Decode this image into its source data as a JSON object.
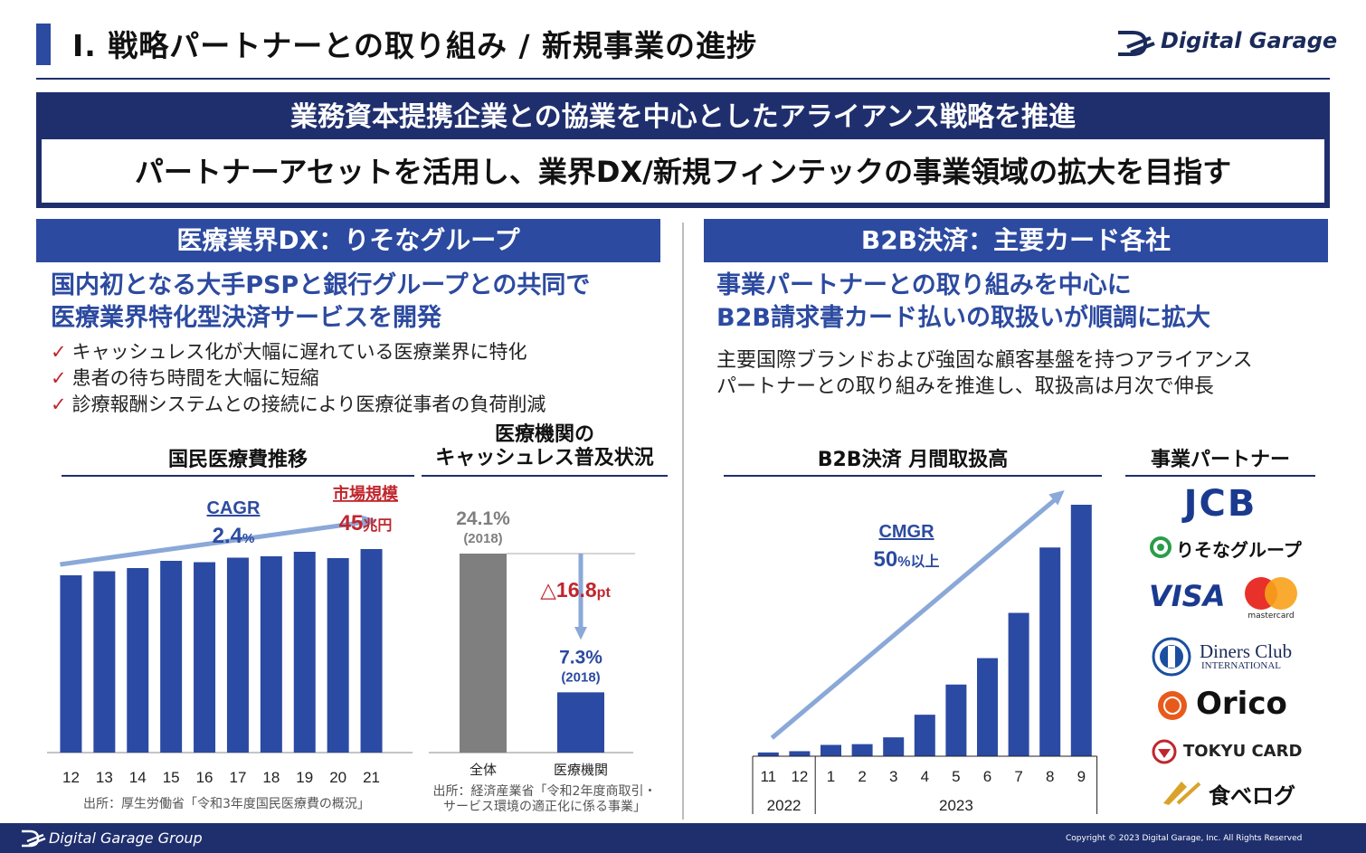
{
  "header": {
    "title": "Ⅰ. 戦略パートナーとの取り組み / 新規事業の進捗",
    "logo_text": "Digital Garage"
  },
  "banner": {
    "top": "業務資本提携企業との協業を中心としたアライアンス戦略を推進",
    "bottom": "パートナーアセットを活用し、業界DX/新規フィンテックの事業領域の拡大を目指す"
  },
  "left": {
    "section_title": "医療業界DX：りそなグループ",
    "headline_1": "国内初となる大手PSPと銀行グループとの共同で",
    "headline_2": "医療業界特化型決済サービスを開発",
    "check_mark": "✓",
    "bullets": [
      "キャッシュレス化が大幅に遅れている医療業界に特化",
      "患者の待ち時間を大幅に短縮",
      "診療報酬システムとの接続により医療従事者の負荷削減"
    ]
  },
  "right": {
    "section_title": "B2B決済：主要カード各社",
    "headline_1": "事業パートナーとの取り組みを中心に",
    "headline_2": "B2B請求書カード払いの取扱いが順調に拡大",
    "body_1": "主要国際ブランドおよび強固な顧客基盤を持つアライアンス",
    "body_2": "パートナーとの取り組みを推進し、取扱高は月次で伸長",
    "partners_title": "事業パートナー",
    "partners": [
      "JCB",
      "りそなグループ",
      "VISA",
      "mastercard",
      "Diners Club",
      "INTERNATIONAL",
      "Orico",
      "TOKYU CARD",
      "食べログ"
    ]
  },
  "footer": {
    "group": "Digital Garage Group",
    "copyright": "Copyright © 2023 Digital Garage, Inc. All Rights Reserved"
  },
  "colors": {
    "navy": "#1f2f6e",
    "blue": "#2c4aa0",
    "bar": "#2b4aa3",
    "red": "#c0262d",
    "gray_bar": "#7f7f7f",
    "arrow": "#8aa8d8"
  },
  "chart_data": [
    {
      "type": "bar",
      "title": "国民医療費推移",
      "categories": [
        "12",
        "13",
        "14",
        "15",
        "16",
        "17",
        "18",
        "19",
        "20",
        "21"
      ],
      "values": [
        39.2,
        40.1,
        40.8,
        42.4,
        42.1,
        43.1,
        43.4,
        44.4,
        43.0,
        45.0
      ],
      "ylim": [
        0,
        50
      ],
      "annotations": {
        "cagr_label": "CAGR",
        "cagr_value": "2.4",
        "cagr_unit": "%",
        "market_label": "市場規模",
        "market_value": "45",
        "market_unit": "兆円"
      },
      "source": "出所：厚生労働省「令和3年度国民医療費の概況」"
    },
    {
      "type": "bar",
      "title_1": "医療機関の",
      "title_2": "キャッシュレス普及状況",
      "categories": [
        "全体",
        "医療機関"
      ],
      "values": [
        24.1,
        7.3
      ],
      "ylim": [
        0,
        30
      ],
      "labels": [
        {
          "value": "24.1%",
          "year": "(2018)"
        },
        {
          "value": "7.3%",
          "year": "(2018)"
        }
      ],
      "difference": "△16.8",
      "difference_unit": "pt",
      "source_1": "出所：経済産業省「令和2年度商取引・",
      "source_2": "サービス環境の適正化に係る事業」"
    },
    {
      "type": "bar",
      "title": "B2B決済 月間取扱高",
      "categories": [
        "11",
        "12",
        "1",
        "2",
        "3",
        "4",
        "5",
        "6",
        "7",
        "8",
        "9"
      ],
      "years": [
        {
          "label": "2022",
          "months": [
            "11",
            "12"
          ]
        },
        {
          "label": "2023",
          "months": [
            "1",
            "2",
            "3",
            "4",
            "5",
            "6",
            "7",
            "8",
            "9"
          ]
        }
      ],
      "values": [
        1.5,
        2.0,
        4.5,
        4.8,
        7.5,
        16.5,
        28.5,
        39.0,
        57.0,
        83.0,
        100.0
      ],
      "ylim": [
        0,
        100
      ],
      "annotations": {
        "label": "CMGR",
        "value": "50",
        "unit": "%以上"
      }
    }
  ]
}
